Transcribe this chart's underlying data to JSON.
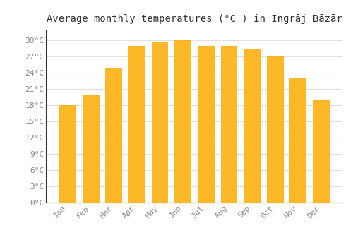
{
  "title": "Average monthly temperatures (°C ) in Ingrāj Bāzār",
  "months": [
    "Jan",
    "Feb",
    "Mar",
    "Apr",
    "May",
    "Jun",
    "Jul",
    "Aug",
    "Sep",
    "Oct",
    "Nov",
    "Dec"
  ],
  "values": [
    18.0,
    20.0,
    25.0,
    29.0,
    29.8,
    30.0,
    29.0,
    29.0,
    28.5,
    27.0,
    23.0,
    19.0
  ],
  "bar_color": "#FDB827",
  "bar_edge_color": "#F5A800",
  "background_color": "#ffffff",
  "grid_color": "#e0e0e0",
  "ytick_labels": [
    "0°C",
    "3°C",
    "6°C",
    "9°C",
    "12°C",
    "15°C",
    "18°C",
    "21°C",
    "24°C",
    "27°C",
    "30°C"
  ],
  "ytick_values": [
    0,
    3,
    6,
    9,
    12,
    15,
    18,
    21,
    24,
    27,
    30
  ],
  "ylim": [
    0,
    32
  ],
  "title_fontsize": 10,
  "tick_fontsize": 8,
  "tick_color": "#888888"
}
